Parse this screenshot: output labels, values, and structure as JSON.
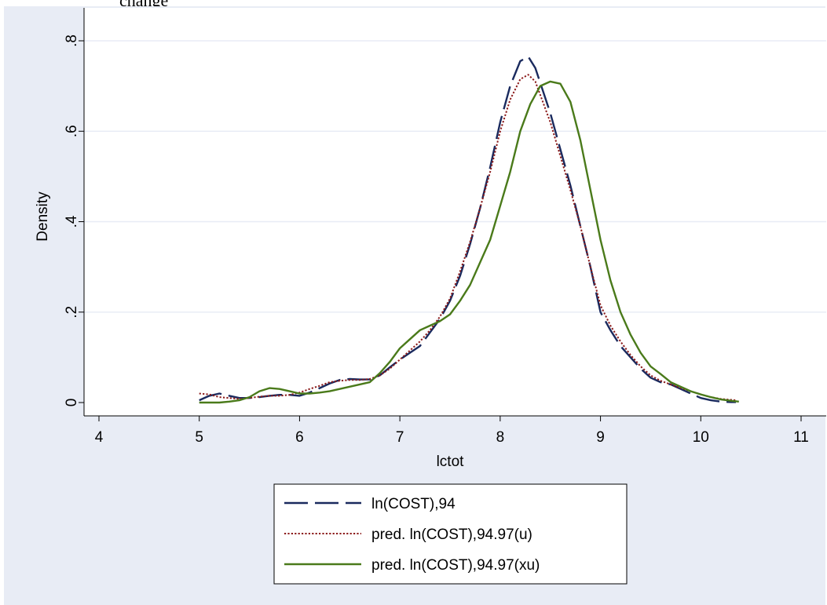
{
  "header_text": "change",
  "chart_data": {
    "type": "line",
    "xlabel": "lctot",
    "ylabel": "Density",
    "xlim": [
      4,
      11
    ],
    "ylim": [
      0,
      0.8
    ],
    "xticks": [
      4,
      5,
      6,
      7,
      8,
      9,
      10,
      11
    ],
    "yticks": [
      0,
      0.2,
      0.4,
      0.6,
      0.8
    ],
    "xtick_labels": [
      "4",
      "5",
      "6",
      "7",
      "8",
      "9",
      "10",
      "11"
    ],
    "ytick_labels": [
      "0",
      ".2",
      ".4",
      ".6",
      ".8"
    ],
    "grid": "horizontal",
    "legend_position": "bottom",
    "colors": {
      "plot_region": "#ffffff",
      "graph_region": "#e8ecf5",
      "grid": "#e8ecf5"
    },
    "series": [
      {
        "name": "ln(COST),94",
        "color": "#1a2a5e",
        "style": "longdash",
        "points": [
          [
            5.0,
            0.005
          ],
          [
            5.1,
            0.015
          ],
          [
            5.2,
            0.02
          ],
          [
            5.3,
            0.015
          ],
          [
            5.4,
            0.01
          ],
          [
            5.5,
            0.01
          ],
          [
            5.6,
            0.012
          ],
          [
            5.7,
            0.015
          ],
          [
            5.8,
            0.017
          ],
          [
            5.9,
            0.017
          ],
          [
            6.0,
            0.015
          ],
          [
            6.1,
            0.022
          ],
          [
            6.2,
            0.032
          ],
          [
            6.3,
            0.042
          ],
          [
            6.4,
            0.05
          ],
          [
            6.5,
            0.052
          ],
          [
            6.6,
            0.051
          ],
          [
            6.7,
            0.051
          ],
          [
            6.8,
            0.06
          ],
          [
            6.9,
            0.078
          ],
          [
            7.0,
            0.095
          ],
          [
            7.1,
            0.11
          ],
          [
            7.2,
            0.125
          ],
          [
            7.3,
            0.155
          ],
          [
            7.4,
            0.185
          ],
          [
            7.5,
            0.225
          ],
          [
            7.6,
            0.28
          ],
          [
            7.7,
            0.35
          ],
          [
            7.8,
            0.43
          ],
          [
            7.9,
            0.52
          ],
          [
            8.0,
            0.62
          ],
          [
            8.1,
            0.7
          ],
          [
            8.2,
            0.755
          ],
          [
            8.28,
            0.765
          ],
          [
            8.35,
            0.74
          ],
          [
            8.5,
            0.64
          ],
          [
            8.6,
            0.56
          ],
          [
            8.7,
            0.48
          ],
          [
            8.8,
            0.39
          ],
          [
            8.9,
            0.3
          ],
          [
            9.0,
            0.2
          ],
          [
            9.1,
            0.16
          ],
          [
            9.2,
            0.125
          ],
          [
            9.3,
            0.1
          ],
          [
            9.4,
            0.075
          ],
          [
            9.5,
            0.055
          ],
          [
            9.6,
            0.045
          ],
          [
            9.7,
            0.04
          ],
          [
            9.8,
            0.03
          ],
          [
            9.9,
            0.02
          ],
          [
            10.0,
            0.01
          ],
          [
            10.1,
            0.005
          ],
          [
            10.2,
            0.002
          ],
          [
            10.3,
            0.001
          ],
          [
            10.35,
            0.001
          ]
        ]
      },
      {
        "name": "pred. ln(COST),94.97(u)",
        "color": "#8b1a1a",
        "style": "dot",
        "points": [
          [
            5.0,
            0.02
          ],
          [
            5.1,
            0.018
          ],
          [
            5.2,
            0.012
          ],
          [
            5.3,
            0.01
          ],
          [
            5.4,
            0.008
          ],
          [
            5.5,
            0.01
          ],
          [
            5.6,
            0.013
          ],
          [
            5.7,
            0.015
          ],
          [
            5.8,
            0.015
          ],
          [
            5.9,
            0.017
          ],
          [
            6.0,
            0.022
          ],
          [
            6.1,
            0.03
          ],
          [
            6.2,
            0.037
          ],
          [
            6.3,
            0.045
          ],
          [
            6.4,
            0.048
          ],
          [
            6.5,
            0.05
          ],
          [
            6.6,
            0.05
          ],
          [
            6.7,
            0.052
          ],
          [
            6.8,
            0.06
          ],
          [
            6.9,
            0.075
          ],
          [
            7.0,
            0.095
          ],
          [
            7.1,
            0.115
          ],
          [
            7.2,
            0.135
          ],
          [
            7.3,
            0.16
          ],
          [
            7.4,
            0.19
          ],
          [
            7.5,
            0.23
          ],
          [
            7.6,
            0.29
          ],
          [
            7.7,
            0.355
          ],
          [
            7.8,
            0.43
          ],
          [
            7.9,
            0.51
          ],
          [
            8.0,
            0.6
          ],
          [
            8.1,
            0.67
          ],
          [
            8.2,
            0.715
          ],
          [
            8.28,
            0.725
          ],
          [
            8.35,
            0.71
          ],
          [
            8.5,
            0.62
          ],
          [
            8.6,
            0.545
          ],
          [
            8.7,
            0.47
          ],
          [
            8.8,
            0.39
          ],
          [
            8.9,
            0.3
          ],
          [
            9.0,
            0.215
          ],
          [
            9.1,
            0.17
          ],
          [
            9.2,
            0.135
          ],
          [
            9.3,
            0.105
          ],
          [
            9.4,
            0.08
          ],
          [
            9.5,
            0.06
          ],
          [
            9.6,
            0.048
          ],
          [
            9.7,
            0.04
          ],
          [
            9.8,
            0.032
          ],
          [
            9.9,
            0.025
          ],
          [
            10.0,
            0.018
          ],
          [
            10.1,
            0.012
          ],
          [
            10.2,
            0.008
          ],
          [
            10.3,
            0.006
          ],
          [
            10.35,
            0.005
          ]
        ]
      },
      {
        "name": "pred. ln(COST),94.97(xu)",
        "color": "#4a7a1a",
        "style": "solid",
        "points": [
          [
            5.0,
            0.0
          ],
          [
            5.2,
            0.0
          ],
          [
            5.3,
            0.002
          ],
          [
            5.4,
            0.005
          ],
          [
            5.5,
            0.012
          ],
          [
            5.6,
            0.025
          ],
          [
            5.7,
            0.032
          ],
          [
            5.8,
            0.03
          ],
          [
            5.9,
            0.025
          ],
          [
            6.0,
            0.02
          ],
          [
            6.1,
            0.02
          ],
          [
            6.2,
            0.022
          ],
          [
            6.3,
            0.025
          ],
          [
            6.4,
            0.03
          ],
          [
            6.5,
            0.035
          ],
          [
            6.6,
            0.04
          ],
          [
            6.7,
            0.045
          ],
          [
            6.8,
            0.065
          ],
          [
            6.9,
            0.09
          ],
          [
            7.0,
            0.12
          ],
          [
            7.1,
            0.14
          ],
          [
            7.2,
            0.16
          ],
          [
            7.3,
            0.17
          ],
          [
            7.4,
            0.18
          ],
          [
            7.5,
            0.195
          ],
          [
            7.6,
            0.225
          ],
          [
            7.7,
            0.26
          ],
          [
            7.8,
            0.31
          ],
          [
            7.9,
            0.36
          ],
          [
            8.0,
            0.435
          ],
          [
            8.1,
            0.51
          ],
          [
            8.2,
            0.6
          ],
          [
            8.3,
            0.66
          ],
          [
            8.4,
            0.7
          ],
          [
            8.5,
            0.71
          ],
          [
            8.6,
            0.705
          ],
          [
            8.7,
            0.665
          ],
          [
            8.8,
            0.58
          ],
          [
            8.9,
            0.47
          ],
          [
            9.0,
            0.36
          ],
          [
            9.1,
            0.27
          ],
          [
            9.2,
            0.2
          ],
          [
            9.3,
            0.15
          ],
          [
            9.4,
            0.11
          ],
          [
            9.5,
            0.08
          ],
          [
            9.6,
            0.063
          ],
          [
            9.7,
            0.045
          ],
          [
            9.8,
            0.035
          ],
          [
            9.9,
            0.025
          ],
          [
            10.0,
            0.018
          ],
          [
            10.1,
            0.012
          ],
          [
            10.2,
            0.007
          ],
          [
            10.3,
            0.004
          ],
          [
            10.38,
            0.002
          ]
        ]
      }
    ]
  }
}
